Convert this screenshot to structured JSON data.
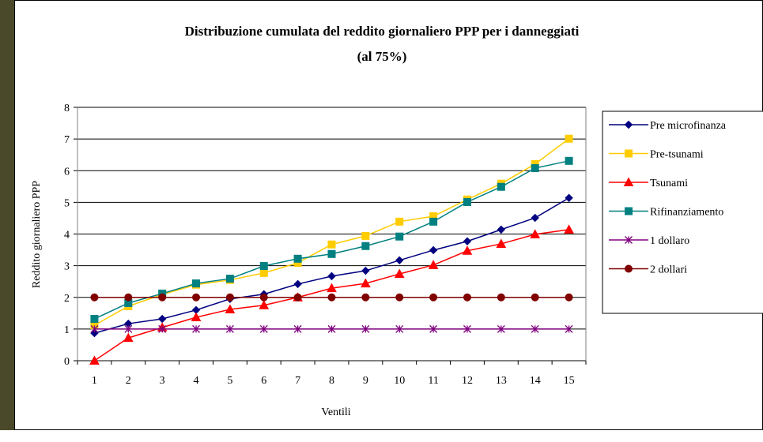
{
  "chart_data": {
    "type": "line",
    "title": "Distribuzione cumulata del reddito giornaliero PPP per i danneggiati",
    "subtitle": "(al 75%)",
    "x_label": "Ventili",
    "y_label": "Reddito giornaliero PPP",
    "categories": [
      "1",
      "2",
      "3",
      "4",
      "5",
      "6",
      "7",
      "8",
      "9",
      "10",
      "11",
      "12",
      "13",
      "14",
      "15"
    ],
    "ylim": [
      0,
      8
    ],
    "yticks": [
      0,
      1,
      2,
      3,
      4,
      5,
      6,
      7,
      8
    ],
    "grid": true,
    "legend": "right",
    "series": [
      {
        "name": "Pre microfinanza",
        "color": "#000080",
        "marker": "diamond",
        "values": [
          0.87,
          1.17,
          1.32,
          1.6,
          1.95,
          2.1,
          2.42,
          2.67,
          2.84,
          3.17,
          3.49,
          3.77,
          4.14,
          4.51,
          5.14
        ]
      },
      {
        "name": "Pre-tsunami",
        "color": "#ffcc00",
        "marker": "square",
        "values": [
          1.12,
          1.72,
          2.09,
          2.4,
          2.55,
          2.77,
          3.09,
          3.67,
          3.94,
          4.39,
          4.56,
          5.09,
          5.59,
          6.21,
          7.01
        ]
      },
      {
        "name": "Tsunami",
        "color": "#ff0000",
        "marker": "triangle",
        "values": [
          0,
          0.72,
          1.05,
          1.37,
          1.62,
          1.75,
          2.0,
          2.29,
          2.44,
          2.74,
          3.02,
          3.47,
          3.69,
          3.99,
          4.14
        ]
      },
      {
        "name": "Rifinanziamento",
        "color": "#008080",
        "marker": "square",
        "values": [
          1.32,
          1.82,
          2.12,
          2.44,
          2.59,
          2.99,
          3.22,
          3.37,
          3.62,
          3.92,
          4.39,
          5.01,
          5.49,
          6.08,
          6.31
        ]
      },
      {
        "name": "1 dollaro",
        "color": "#800080",
        "marker": "star",
        "values": [
          1,
          1,
          1,
          1,
          1,
          1,
          1,
          1,
          1,
          1,
          1,
          1,
          1,
          1,
          1
        ]
      },
      {
        "name": "2 dollari",
        "color": "#800000",
        "marker": "circle",
        "values": [
          2,
          2,
          2,
          2,
          2,
          2,
          2,
          2,
          2,
          2,
          2,
          2,
          2,
          2,
          2
        ]
      }
    ]
  }
}
